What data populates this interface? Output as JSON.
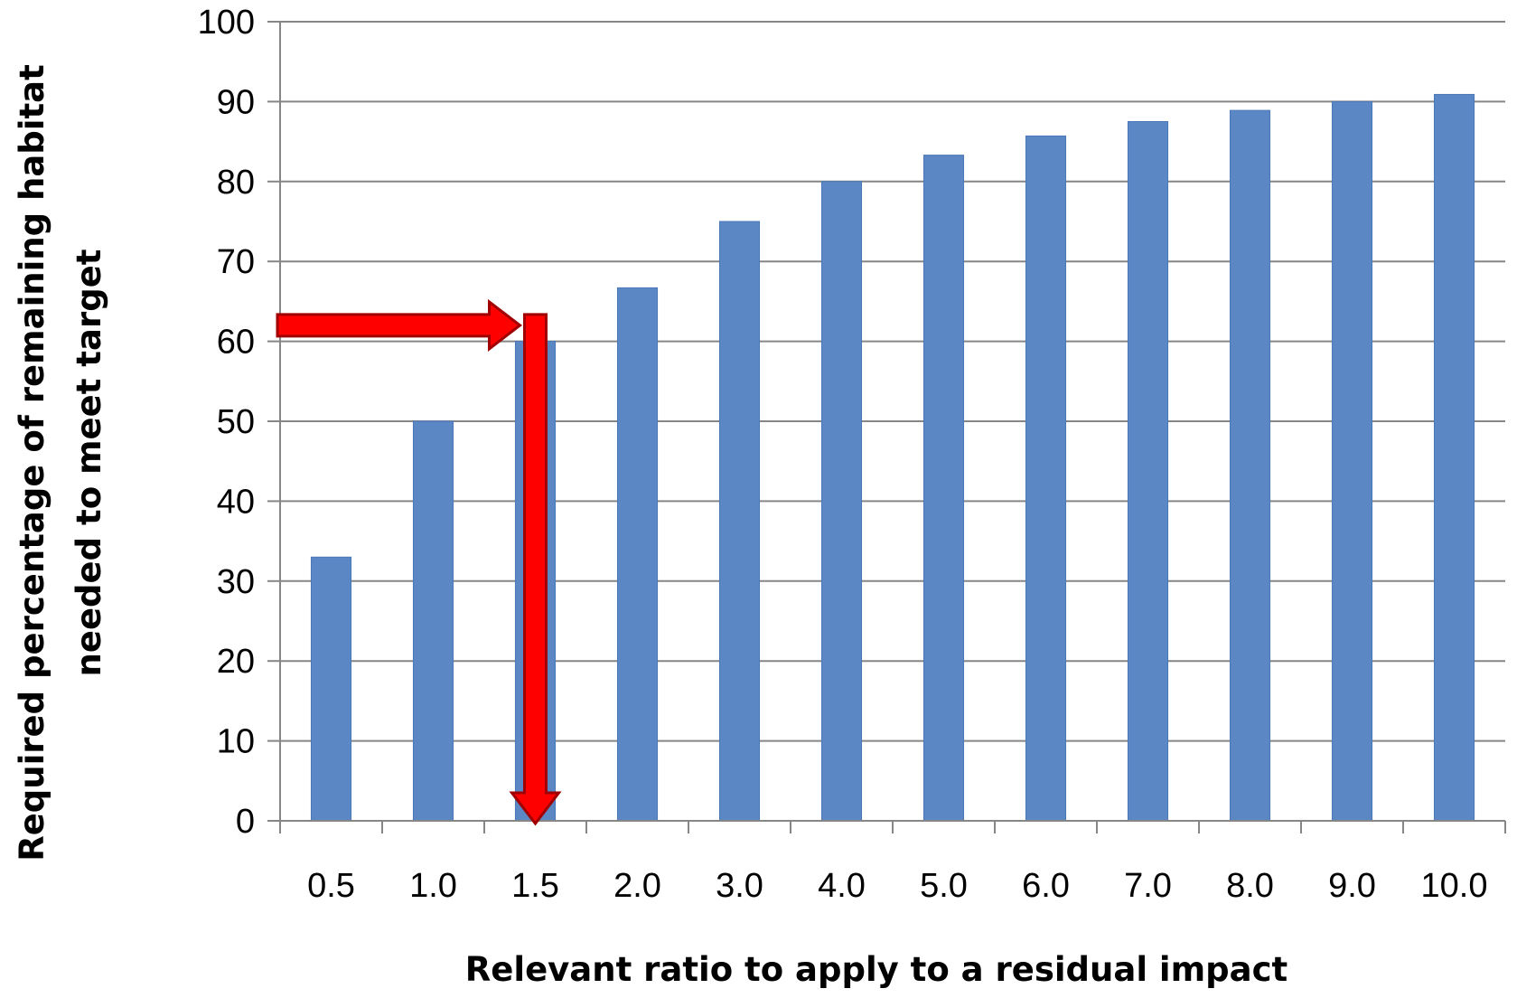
{
  "chart_data": {
    "type": "bar",
    "xlabel": "Relevant ratio to apply to a residual impact",
    "ylabel_lines": [
      "Required percentage of remaining habitat",
      "needed to meet target"
    ],
    "categories": [
      "0.5",
      "1.0",
      "1.5",
      "2.0",
      "3.0",
      "4.0",
      "5.0",
      "6.0",
      "7.0",
      "8.0",
      "9.0",
      "10.0"
    ],
    "values": [
      33,
      50,
      60,
      66.7,
      75,
      80,
      83.3,
      85.7,
      87.5,
      88.9,
      90,
      90.9
    ],
    "ylim": [
      0,
      100
    ],
    "y_ticks": [
      "0",
      "10",
      "20",
      "30",
      "40",
      "50",
      "60",
      "70",
      "80",
      "90",
      "100"
    ],
    "grid": true,
    "legend": "none",
    "annotation": {
      "type": "arrows",
      "horizontal_arrow_at_y": 62,
      "vertical_arrow_at_category": "1.5",
      "color": "#ff0000"
    },
    "colors": {
      "bar": "#5b87c5",
      "gridline": "#868686",
      "axis": "#868686",
      "arrow": "#ff0000",
      "arrow_edge": "#a00000"
    }
  }
}
